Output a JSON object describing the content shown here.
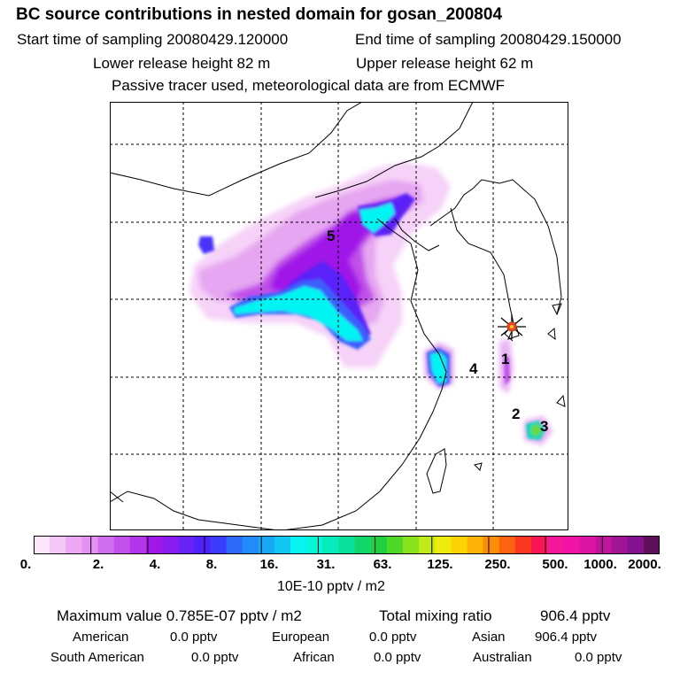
{
  "header": {
    "title": "BC  source contributions in nested domain for gosan_200804",
    "start_label": "Start time of sampling 20080429.120000",
    "end_label": "End time of sampling 20080429.150000",
    "lower_release": "Lower release height   82 m",
    "upper_release": "Upper release height   62 m",
    "note": "Passive tracer used, meteorological data are from ECMWF"
  },
  "map": {
    "receptor": "gosan",
    "source_markers": [
      "1",
      "2",
      "3",
      "4",
      "5"
    ]
  },
  "colorbar": {
    "ticks": [
      "0.",
      "2.",
      "4.",
      "8.",
      "16.",
      "31.",
      "63.",
      "125.",
      "250.",
      "500.",
      "1000.",
      "2000."
    ],
    "units": "10E-10 pptv / m2",
    "colors": [
      "#fde6fc",
      "#f5c6f8",
      "#eda8f5",
      "#e391f3",
      "#d070ef",
      "#c250ec",
      "#b235ea",
      "#a316e8",
      "#8a1cf2",
      "#6a22f6",
      "#4f22fc",
      "#3b3dfc",
      "#2e6afa",
      "#1f8cf8",
      "#17a8f6",
      "#12c6f4",
      "#06f4f2",
      "#05f6d8",
      "#04ecbc",
      "#0ae09c",
      "#12d66c",
      "#20d040",
      "#4ed828",
      "#88e21c",
      "#c2ea16",
      "#ecec0c",
      "#fcd406",
      "#fcb206",
      "#fc8e06",
      "#fc6210",
      "#fc3822",
      "#f81654",
      "#f61698",
      "#f014a6",
      "#de14a4",
      "#c0149c",
      "#a01496",
      "#841290",
      "#60105a"
    ]
  },
  "summary": {
    "max_label": "Maximum value  0.785E-07 pptv / m2",
    "total_label": "Total mixing ratio",
    "total_value": "906.4 pptv",
    "rows": [
      [
        {
          "name": "American",
          "value": "0.0 pptv"
        },
        {
          "name": "European",
          "value": "0.0 pptv"
        },
        {
          "name": "Asian",
          "value": "906.4 pptv"
        }
      ],
      [
        {
          "name": "South American",
          "value": "0.0 pptv"
        },
        {
          "name": "African",
          "value": "0.0 pptv"
        },
        {
          "name": "Australian",
          "value": "0.0 pptv"
        }
      ]
    ]
  }
}
